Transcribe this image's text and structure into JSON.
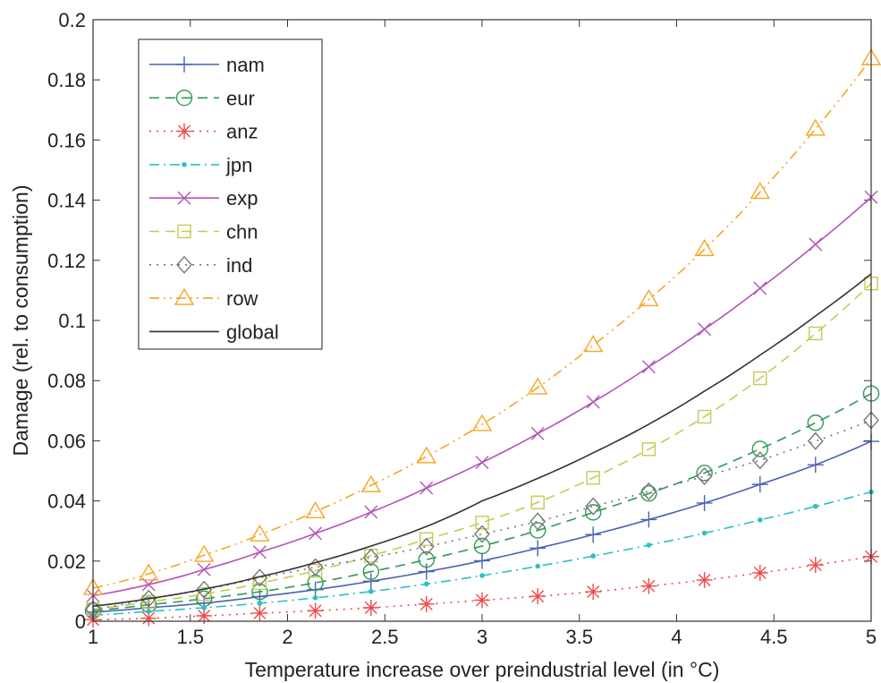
{
  "chart_data": {
    "type": "line",
    "title": "",
    "xlabel": "Temperature increase over preindustrial level (in °C)",
    "ylabel": "Damage (rel. to consumption)",
    "xlim": [
      1,
      5
    ],
    "ylim": [
      0,
      0.2
    ],
    "xticks": [
      1,
      1.5,
      2,
      2.5,
      3,
      3.5,
      4,
      4.5,
      5
    ],
    "xtick_labels": [
      "1",
      "1.5",
      "2",
      "2.5",
      "3",
      "3.5",
      "4",
      "4.5",
      "5"
    ],
    "yticks": [
      0,
      0.02,
      0.04,
      0.06,
      0.08,
      0.1,
      0.12,
      0.14,
      0.16,
      0.18,
      0.2
    ],
    "ytick_labels": [
      "0",
      "0.02",
      "0.04",
      "0.06",
      "0.08",
      "0.1",
      "0.12",
      "0.14",
      "0.16",
      "0.18",
      "0.2"
    ],
    "grid": false,
    "legend_position": "top-left",
    "marker_x": [
      1,
      1.286,
      1.571,
      1.857,
      2.143,
      2.429,
      2.714,
      3,
      3.286,
      3.571,
      3.857,
      4.143,
      4.429,
      4.714,
      5
    ],
    "series": [
      {
        "name": "nam",
        "color": "#4a62b4",
        "line": "solid",
        "marker": "plus",
        "values": [
          0.003,
          0.0045,
          0.006,
          0.0082,
          0.0105,
          0.0133,
          0.0165,
          0.0201,
          0.0243,
          0.0288,
          0.0338,
          0.0393,
          0.0455,
          0.052,
          0.0598
        ]
      },
      {
        "name": "eur",
        "color": "#2e9a55",
        "line": "dashed",
        "marker": "circle",
        "values": [
          0.0035,
          0.0055,
          0.0075,
          0.0098,
          0.0128,
          0.0165,
          0.0205,
          0.025,
          0.0302,
          0.0362,
          0.0425,
          0.0493,
          0.0573,
          0.066,
          0.0757
        ]
      },
      {
        "name": "anz",
        "color": "#f04a4a",
        "line": "dotted",
        "marker": "asterisk",
        "values": [
          0.0005,
          0.001,
          0.0018,
          0.0027,
          0.0035,
          0.0045,
          0.0057,
          0.007,
          0.0083,
          0.0098,
          0.0117,
          0.0137,
          0.0161,
          0.0187,
          0.0215
        ]
      },
      {
        "name": "jpn",
        "color": "#2bbfc7",
        "line": "dashdot",
        "marker": "dot",
        "values": [
          0.002,
          0.0033,
          0.0045,
          0.006,
          0.0078,
          0.0099,
          0.0124,
          0.0152,
          0.0183,
          0.0217,
          0.0253,
          0.0293,
          0.0337,
          0.0382,
          0.043
        ]
      },
      {
        "name": "exp",
        "color": "#b353b7",
        "line": "solid",
        "marker": "x",
        "values": [
          0.0085,
          0.0122,
          0.0172,
          0.023,
          0.0292,
          0.0363,
          0.0443,
          0.0528,
          0.0624,
          0.0729,
          0.0846,
          0.0971,
          0.1107,
          0.1253,
          0.141
        ]
      },
      {
        "name": "chn",
        "color": "#c5cb55",
        "line": "dashed",
        "marker": "square",
        "values": [
          0.004,
          0.0065,
          0.009,
          0.0127,
          0.0168,
          0.0218,
          0.0273,
          0.0328,
          0.0395,
          0.0477,
          0.0572,
          0.068,
          0.0808,
          0.0957,
          0.1123
        ]
      },
      {
        "name": "ind",
        "color": "#777777",
        "line": "dotted",
        "marker": "diamond",
        "values": [
          0.004,
          0.0075,
          0.0105,
          0.0145,
          0.018,
          0.0212,
          0.0248,
          0.029,
          0.0332,
          0.0382,
          0.0432,
          0.0482,
          0.0535,
          0.0599,
          0.0668
        ]
      },
      {
        "name": "row",
        "color": "#f5a623",
        "line": "dashdotdot",
        "marker": "triangle",
        "values": [
          0.011,
          0.0158,
          0.022,
          0.0288,
          0.0365,
          0.0452,
          0.0548,
          0.0655,
          0.0777,
          0.0918,
          0.107,
          0.1237,
          0.1427,
          0.1637,
          0.1871
        ]
      },
      {
        "name": "global",
        "color": "#333333",
        "line": "solid",
        "marker": "none",
        "values": [
          0.005,
          0.0075,
          0.0107,
          0.0148,
          0.0195,
          0.025,
          0.0315,
          0.04,
          0.0475,
          0.056,
          0.0655,
          0.0765,
          0.0885,
          0.1015,
          0.1155
        ]
      }
    ]
  }
}
